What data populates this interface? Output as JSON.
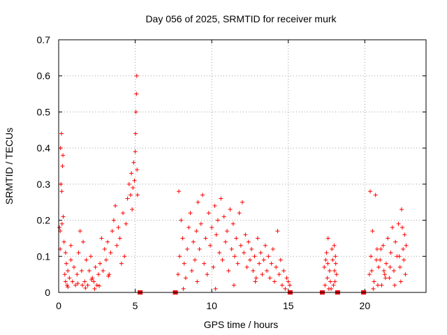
{
  "chart_data": {
    "type": "scatter",
    "title": "Day 056 of 2025, SRMTID for receiver murk",
    "xlabel": "GPS time / hours",
    "ylabel": "SRMTID / TECUs",
    "xlim": [
      0,
      24
    ],
    "ylim": [
      0,
      0.7
    ],
    "x_ticks": [
      "0",
      "5",
      "10",
      "15",
      "20"
    ],
    "y_ticks": [
      "0",
      "0.1",
      "0.2",
      "0.3",
      "0.4",
      "0.5",
      "0.6",
      "0.7"
    ],
    "grid": true,
    "legend": "none",
    "marker": "+",
    "color": "#ff0000",
    "data_gap_markers_x": [
      5.3,
      7.6,
      15.1,
      17.2,
      18.2,
      19.9
    ],
    "series": [
      {
        "points": [
          [
            0.05,
            0.18
          ],
          [
            0.1,
            0.17
          ],
          [
            0.12,
            0.4
          ],
          [
            0.15,
            0.3
          ],
          [
            0.18,
            0.44
          ],
          [
            0.2,
            0.28
          ],
          [
            0.22,
            0.19
          ],
          [
            0.25,
            0.35
          ],
          [
            0.28,
            0.38
          ],
          [
            0.3,
            0.21
          ],
          [
            0.1,
            0.12
          ],
          [
            0.35,
            0.14
          ],
          [
            0.4,
            0.05
          ],
          [
            0.45,
            0.03
          ],
          [
            0.5,
            0.08
          ],
          [
            0.55,
            0.02
          ],
          [
            0.6,
            0.06
          ],
          [
            0.7,
            0.04
          ],
          [
            0.8,
            0.09
          ],
          [
            0.9,
            0.03
          ],
          [
            1.0,
            0.07
          ],
          [
            1.1,
            0.02
          ],
          [
            1.2,
            0.05
          ],
          [
            1.3,
            0.11
          ],
          [
            1.4,
            0.17
          ],
          [
            1.5,
            0.06
          ],
          [
            1.6,
            0.14
          ],
          [
            1.7,
            0.03
          ],
          [
            1.8,
            0.09
          ],
          [
            1.9,
            0.02
          ],
          [
            2.0,
            0.06
          ],
          [
            2.1,
            0.1
          ],
          [
            2.2,
            0.04
          ],
          [
            2.3,
            0.03
          ],
          [
            2.4,
            0.07
          ],
          [
            2.5,
            0.02
          ],
          [
            2.6,
            0.05
          ],
          [
            2.7,
            0.08
          ],
          [
            2.8,
            0.15
          ],
          [
            2.9,
            0.06
          ],
          [
            3.0,
            0.12
          ],
          [
            3.1,
            0.09
          ],
          [
            3.2,
            0.14
          ],
          [
            3.3,
            0.05
          ],
          [
            3.4,
            0.11
          ],
          [
            3.5,
            0.17
          ],
          [
            3.6,
            0.2
          ],
          [
            3.7,
            0.24
          ],
          [
            3.8,
            0.13
          ],
          [
            3.9,
            0.18
          ],
          [
            4.0,
            0.15
          ],
          [
            4.1,
            0.08
          ],
          [
            4.2,
            0.22
          ],
          [
            4.3,
            0.1
          ],
          [
            4.4,
            0.19
          ],
          [
            4.5,
            0.26
          ],
          [
            4.6,
            0.3
          ],
          [
            4.7,
            0.27
          ],
          [
            4.75,
            0.33
          ],
          [
            4.8,
            0.23
          ],
          [
            4.85,
            0.29
          ],
          [
            4.9,
            0.36
          ],
          [
            4.95,
            0.31
          ],
          [
            5.0,
            0.39
          ],
          [
            5.02,
            0.44
          ],
          [
            5.05,
            0.5
          ],
          [
            5.08,
            0.55
          ],
          [
            5.1,
            0.6
          ],
          [
            5.12,
            0.34
          ],
          [
            5.15,
            0.27
          ],
          [
            0.6,
            0.015
          ],
          [
            1.25,
            0.025
          ],
          [
            1.75,
            0.012
          ],
          [
            2.15,
            0.035
          ],
          [
            2.65,
            0.018
          ],
          [
            3.25,
            0.045
          ],
          [
            0.45,
            0.11
          ],
          [
            0.8,
            0.13
          ],
          [
            1.55,
            0.02
          ],
          [
            2.35,
            0.01
          ],
          [
            7.8,
            0.05
          ],
          [
            7.85,
            0.28
          ],
          [
            7.9,
            0.1
          ],
          [
            8.0,
            0.2
          ],
          [
            8.1,
            0.15
          ],
          [
            8.2,
            0.08
          ],
          [
            8.3,
            0.04
          ],
          [
            8.4,
            0.12
          ],
          [
            8.5,
            0.18
          ],
          [
            8.6,
            0.22
          ],
          [
            8.7,
            0.06
          ],
          [
            8.8,
            0.14
          ],
          [
            8.9,
            0.09
          ],
          [
            9.0,
            0.17
          ],
          [
            9.1,
            0.25
          ],
          [
            9.2,
            0.12
          ],
          [
            9.3,
            0.19
          ],
          [
            9.4,
            0.27
          ],
          [
            9.5,
            0.08
          ],
          [
            9.6,
            0.15
          ],
          [
            9.7,
            0.05
          ],
          [
            9.8,
            0.22
          ],
          [
            9.9,
            0.13
          ],
          [
            10.0,
            0.18
          ],
          [
            10.1,
            0.07
          ],
          [
            10.2,
            0.24
          ],
          [
            10.3,
            0.16
          ],
          [
            10.4,
            0.2
          ],
          [
            10.5,
            0.11
          ],
          [
            10.6,
            0.26
          ],
          [
            10.7,
            0.09
          ],
          [
            10.8,
            0.21
          ],
          [
            10.9,
            0.14
          ],
          [
            11.0,
            0.17
          ],
          [
            11.1,
            0.06
          ],
          [
            11.2,
            0.23
          ],
          [
            11.3,
            0.12
          ],
          [
            11.4,
            0.19
          ],
          [
            11.5,
            0.1
          ],
          [
            11.6,
            0.15
          ],
          [
            11.7,
            0.08
          ],
          [
            11.8,
            0.22
          ],
          [
            11.9,
            0.13
          ],
          [
            12.0,
            0.25
          ],
          [
            12.1,
            0.11
          ],
          [
            12.2,
            0.16
          ],
          [
            12.3,
            0.07
          ],
          [
            12.4,
            0.14
          ],
          [
            12.5,
            0.09
          ],
          [
            12.6,
            0.12
          ],
          [
            12.7,
            0.06
          ],
          [
            12.8,
            0.1
          ],
          [
            12.9,
            0.04
          ],
          [
            13.0,
            0.15
          ],
          [
            13.1,
            0.08
          ],
          [
            13.2,
            0.11
          ],
          [
            13.3,
            0.05
          ],
          [
            13.4,
            0.09
          ],
          [
            13.5,
            0.13
          ],
          [
            13.6,
            0.06
          ],
          [
            13.7,
            0.1
          ],
          [
            13.8,
            0.04
          ],
          [
            13.9,
            0.08
          ],
          [
            14.0,
            0.12
          ],
          [
            14.1,
            0.03
          ],
          [
            14.2,
            0.07
          ],
          [
            14.3,
            0.17
          ],
          [
            14.4,
            0.05
          ],
          [
            14.5,
            0.09
          ],
          [
            14.6,
            0.02
          ],
          [
            14.7,
            0.06
          ],
          [
            14.8,
            0.01
          ],
          [
            14.9,
            0.04
          ],
          [
            15.0,
            0.03
          ],
          [
            15.1,
            0.02
          ],
          [
            9.05,
            0.03
          ],
          [
            10.25,
            0.01
          ],
          [
            11.45,
            0.02
          ],
          [
            8.15,
            0.01
          ],
          [
            12.85,
            0.03
          ],
          [
            17.35,
            0.07
          ],
          [
            17.4,
            0.02
          ],
          [
            17.5,
            0.11
          ],
          [
            17.55,
            0.04
          ],
          [
            17.6,
            0.15
          ],
          [
            17.7,
            0.06
          ],
          [
            17.8,
            0.01
          ],
          [
            17.9,
            0.09
          ],
          [
            18.0,
            0.13
          ],
          [
            18.05,
            0.03
          ],
          [
            18.1,
            0.08
          ],
          [
            18.15,
            0.05
          ],
          [
            17.45,
            0.09
          ],
          [
            17.65,
            0.01
          ],
          [
            17.85,
            0.12
          ],
          [
            17.95,
            0.02
          ],
          [
            18.02,
            0.06
          ],
          [
            18.08,
            0.1
          ],
          [
            17.75,
            0.03
          ],
          [
            17.58,
            0.08
          ],
          [
            20.3,
            0.05
          ],
          [
            20.35,
            0.28
          ],
          [
            20.4,
            0.1
          ],
          [
            20.5,
            0.17
          ],
          [
            20.6,
            0.03
          ],
          [
            20.7,
            0.27
          ],
          [
            20.8,
            0.12
          ],
          [
            20.9,
            0.07
          ],
          [
            21.0,
            0.09
          ],
          [
            21.1,
            0.02
          ],
          [
            21.2,
            0.13
          ],
          [
            21.3,
            0.05
          ],
          [
            21.4,
            0.08
          ],
          [
            21.5,
            0.15
          ],
          [
            21.6,
            0.04
          ],
          [
            21.7,
            0.11
          ],
          [
            21.8,
            0.18
          ],
          [
            21.9,
            0.06
          ],
          [
            22.0,
            0.14
          ],
          [
            22.1,
            0.1
          ],
          [
            22.2,
            0.19
          ],
          [
            22.3,
            0.07
          ],
          [
            22.4,
            0.23
          ],
          [
            22.5,
            0.12
          ],
          [
            22.6,
            0.16
          ],
          [
            22.65,
            0.05
          ],
          [
            22.7,
            0.13
          ],
          [
            22.55,
            0.09
          ],
          [
            22.45,
            0.18
          ],
          [
            22.35,
            0.03
          ],
          [
            20.45,
            0.06
          ],
          [
            20.55,
            0.01
          ],
          [
            20.75,
            0.09
          ],
          [
            21.05,
            0.12
          ],
          [
            21.35,
            0.04
          ],
          [
            21.65,
            0.07
          ],
          [
            21.95,
            0.02
          ],
          [
            22.25,
            0.1
          ],
          [
            20.85,
            0.02
          ],
          [
            21.25,
            0.06
          ]
        ]
      }
    ]
  }
}
